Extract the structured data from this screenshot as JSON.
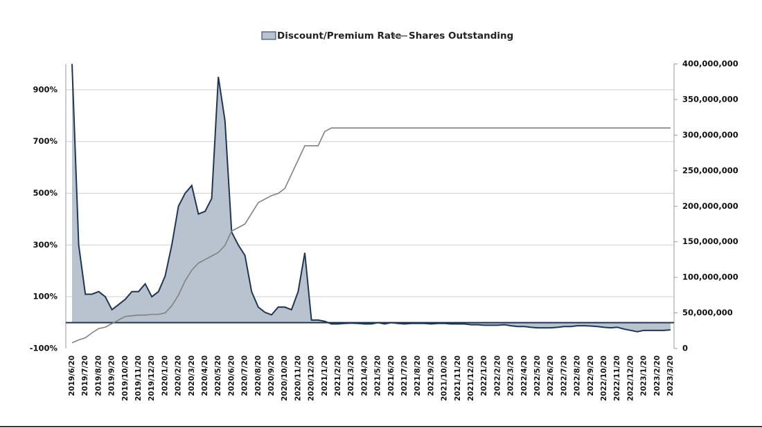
{
  "chart_data": {
    "type": "area-line",
    "categories": [
      "2019/6/20",
      null,
      "2019/7/20",
      null,
      "2019/8/20",
      null,
      "2019/9/20",
      null,
      "2019/10/20",
      null,
      "2019/11/20",
      null,
      "2019/12/20",
      null,
      "2020/1/20",
      null,
      "2020/2/20",
      null,
      "2020/3/20",
      null,
      "2020/4/20",
      null,
      "2020/5/20",
      null,
      "2020/6/20",
      null,
      "2020/7/20",
      null,
      "2020/8/20",
      null,
      "2020/9/20",
      null,
      "2020/10/20",
      null,
      "2020/11/20",
      null,
      "2020/12/20",
      null,
      "2021/1/20",
      null,
      "2021/2/20",
      null,
      "2021/3/20",
      null,
      "2021/4/20",
      null,
      "2021/5/20",
      null,
      "2021/6/20",
      null,
      "2021/7/20",
      null,
      "2021/8/20",
      null,
      "2021/9/20",
      null,
      "2021/10/20",
      null,
      "2021/11/20",
      null,
      "2021/12/20",
      null,
      "2022/1/20",
      null,
      "2022/2/20",
      null,
      "2022/3/20",
      null,
      "2022/4/20",
      null,
      "2022/5/20",
      null,
      "2022/6/20",
      null,
      "2022/7/20",
      null,
      "2022/8/20",
      null,
      "2022/9/20",
      null,
      "2022/10/20",
      null,
      "2022/11/20",
      null,
      "2022/12/20",
      null,
      "2023/1/20",
      null,
      "2023/2/20",
      null,
      "2023/3/20"
    ],
    "series": [
      {
        "name": "Discount/Premium Rate",
        "color": "#1f3554",
        "fill": "#b9c3cf",
        "axis": "y",
        "values": [
          1000,
          300,
          110,
          110,
          120,
          100,
          50,
          70,
          90,
          120,
          120,
          150,
          100,
          120,
          180,
          300,
          450,
          500,
          530,
          420,
          430,
          480,
          950,
          780,
          350,
          300,
          260,
          120,
          60,
          40,
          30,
          60,
          60,
          50,
          120,
          270,
          10,
          10,
          5,
          -5,
          -5,
          -3,
          -2,
          -3,
          -5,
          -5,
          0,
          -5,
          0,
          -3,
          -5,
          -3,
          -3,
          -3,
          -5,
          -3,
          -3,
          -5,
          -5,
          -5,
          -8,
          -8,
          -10,
          -10,
          -10,
          -8,
          -12,
          -15,
          -15,
          -18,
          -20,
          -20,
          -20,
          -18,
          -15,
          -15,
          -12,
          -12,
          -13,
          -15,
          -18,
          -20,
          -18,
          -25,
          -30,
          -35,
          -30,
          -30,
          -30,
          -30,
          -28
        ]
      },
      {
        "name": "Shares Outstanding",
        "color": "#808080",
        "axis": "y2",
        "values": [
          8000000,
          12000000,
          15000000,
          22000000,
          28000000,
          30000000,
          35000000,
          40000000,
          45000000,
          46000000,
          47000000,
          47000000,
          48000000,
          48000000,
          50000000,
          60000000,
          75000000,
          95000000,
          110000000,
          120000000,
          125000000,
          130000000,
          135000000,
          145000000,
          165000000,
          170000000,
          175000000,
          190000000,
          205000000,
          210000000,
          215000000,
          218000000,
          225000000,
          245000000,
          265000000,
          285000000,
          285000000,
          285000000,
          305000000,
          310000000,
          310000000,
          310000000,
          310000000,
          310000000,
          310000000,
          310000000,
          310000000,
          310000000,
          310000000,
          310000000,
          310000000,
          310000000,
          310000000,
          310000000,
          310000000,
          310000000,
          310000000,
          310000000,
          310000000,
          310000000,
          310000000,
          310000000,
          310000000,
          310000000,
          310000000,
          310000000,
          310000000,
          310000000,
          310000000,
          310000000,
          310000000,
          310000000,
          310000000,
          310000000,
          310000000,
          310000000,
          310000000,
          310000000,
          310000000,
          310000000,
          310000000,
          310000000,
          310000000,
          310000000,
          310000000,
          310000000,
          310000000,
          310000000,
          310000000,
          310000000,
          310000000
        ]
      }
    ],
    "ylim": [
      -100,
      1000
    ],
    "yticks": [
      {
        "value": -100,
        "label": "-100%"
      },
      {
        "value": 100,
        "label": "100%"
      },
      {
        "value": 300,
        "label": "300%"
      },
      {
        "value": 500,
        "label": "500%"
      },
      {
        "value": 700,
        "label": "700%"
      },
      {
        "value": 900,
        "label": "900%"
      }
    ],
    "y2lim": [
      0,
      400000000
    ],
    "y2ticks": [
      0,
      {
        "value": 50000000,
        "label": "50,000,000"
      },
      {
        "value": 100000000,
        "label": "100,000,000"
      },
      {
        "value": 150000000,
        "label": "150,000,000"
      },
      {
        "value": 200000000,
        "label": "200,000,000"
      },
      {
        "value": 250000000,
        "label": "250,000,000"
      },
      {
        "value": 300000000,
        "label": "300,000,000"
      },
      {
        "value": 350000000,
        "label": "350,000,000"
      },
      {
        "value": 400000000,
        "label": "400,000,000"
      }
    ],
    "grid": true,
    "legend": "top"
  }
}
